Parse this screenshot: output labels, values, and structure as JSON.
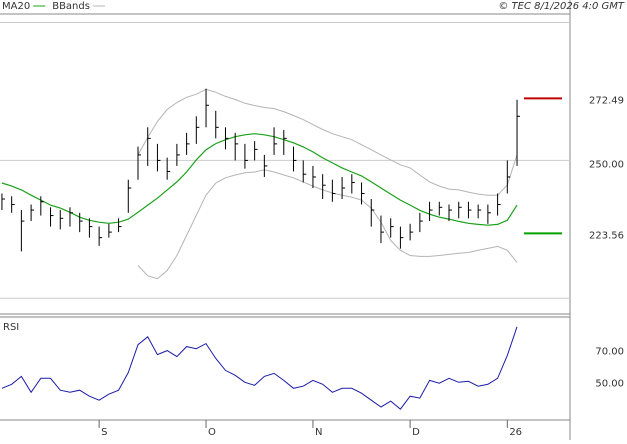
{
  "chart_data": {
    "type": "ohlc",
    "stamp": "© TEC 8/1/2026 4:0 GMT",
    "x": [
      0,
      2,
      4,
      6,
      8,
      10,
      12,
      14,
      16,
      18,
      20,
      22,
      24,
      26,
      28,
      30,
      32,
      34,
      36,
      38,
      40,
      42,
      44,
      46,
      48,
      50,
      52,
      54,
      56,
      58,
      60,
      62,
      64,
      66,
      68,
      70,
      72,
      74,
      76,
      78,
      80,
      82,
      84,
      86,
      88,
      90,
      92,
      94,
      96,
      98,
      100,
      102,
      104,
      106
    ],
    "xlim": [
      -0.4,
      116.9
    ],
    "xticks": [
      {
        "value": 20,
        "label": "S"
      },
      {
        "value": 42,
        "label": "O"
      },
      {
        "value": 64,
        "label": "N"
      },
      {
        "value": 84,
        "label": "D"
      },
      {
        "value": 104,
        "label": "26"
      }
    ],
    "ylim": [
      194.3,
      303.1
    ],
    "yticks": [
      {
        "value": 250,
        "label": "250.00"
      }
    ],
    "ygrid": [
      200,
      250,
      300
    ],
    "bars": {
      "color": "#000000",
      "high": [
        238,
        237,
        232,
        234,
        237,
        233,
        232,
        233,
        231,
        229,
        226,
        227,
        229,
        243,
        255,
        262,
        256,
        251,
        256,
        260,
        266,
        276,
        268,
        262,
        260,
        256,
        257,
        252,
        262,
        261,
        255,
        250,
        248,
        245,
        243,
        244,
        245,
        242,
        236,
        230,
        229,
        226,
        227,
        231,
        235,
        235,
        234,
        235,
        235,
        234,
        234,
        238,
        250,
        272
      ],
      "low": [
        232,
        231,
        217,
        228,
        230,
        226,
        225,
        226,
        224,
        222,
        219,
        222,
        224,
        231,
        243,
        248,
        246,
        243,
        248,
        252,
        256,
        262,
        258,
        254,
        250,
        247,
        250,
        244,
        252,
        252,
        246,
        242,
        240,
        236,
        235,
        236,
        238,
        234,
        226,
        220,
        222,
        218,
        221,
        224,
        228,
        230,
        228,
        229,
        229,
        229,
        227,
        230,
        238,
        248
      ],
      "close": [
        236,
        234,
        228,
        232,
        235,
        230,
        229,
        231,
        228,
        226,
        222,
        224,
        226,
        240,
        252,
        258,
        250,
        246,
        252,
        256,
        262,
        270,
        262,
        258,
        256,
        250,
        254,
        248,
        256,
        258,
        250,
        245,
        244,
        241,
        238,
        240,
        242,
        238,
        232,
        224,
        226,
        222,
        224,
        228,
        232,
        233,
        232,
        233,
        232,
        232,
        231,
        234,
        244,
        266
      ]
    },
    "series": [
      {
        "name": "MA20",
        "color": "#1aa01a",
        "values": [
          241.8,
          240.7,
          239.3,
          237.4,
          235.6,
          233.8,
          232.7,
          231.2,
          229.4,
          228.3,
          227.6,
          227.2,
          227.6,
          228.7,
          231.2,
          233.8,
          236.3,
          239.3,
          242.2,
          245.8,
          250.2,
          253.9,
          256.1,
          257.5,
          258.6,
          259.3,
          259.7,
          259.3,
          258.6,
          257.5,
          256.4,
          254.9,
          253.1,
          250.9,
          249.1,
          247.3,
          245.8,
          244.4,
          242.2,
          240.0,
          237.8,
          235.6,
          233.8,
          231.9,
          230.5,
          229.4,
          228.7,
          227.9,
          227.2,
          226.8,
          226.5,
          226.8,
          228.3,
          233.8
        ]
      },
      {
        "name": "BBands",
        "color": "#b4b4b4",
        "upper": [
          null,
          null,
          null,
          null,
          null,
          null,
          null,
          null,
          null,
          null,
          null,
          null,
          null,
          null,
          252.0,
          258.3,
          264.1,
          268.5,
          271.0,
          272.9,
          274.0,
          275.8,
          274.7,
          273.2,
          272.1,
          270.7,
          269.9,
          269.2,
          268.8,
          267.7,
          266.3,
          264.8,
          263.0,
          261.2,
          259.7,
          258.6,
          257.5,
          255.7,
          253.9,
          252.0,
          250.2,
          248.4,
          247.3,
          244.7,
          242.2,
          240.7,
          239.6,
          239.3,
          238.5,
          237.8,
          237.4,
          237.4,
          241.1,
          252.0
        ],
        "lower": [
          null,
          null,
          null,
          null,
          null,
          null,
          null,
          null,
          null,
          null,
          null,
          null,
          null,
          null,
          211.9,
          208.2,
          207.1,
          210.1,
          215.5,
          222.8,
          230.1,
          237.4,
          241.8,
          243.7,
          244.7,
          245.5,
          245.8,
          246.6,
          245.8,
          244.7,
          243.7,
          242.2,
          240.7,
          239.3,
          238.2,
          237.4,
          236.7,
          235.6,
          232.7,
          227.6,
          221.0,
          217.4,
          215.5,
          215.2,
          215.2,
          215.5,
          215.9,
          216.3,
          216.6,
          217.4,
          218.1,
          218.8,
          217.4,
          213.0
        ]
      }
    ],
    "markers": [
      {
        "value": 272.49,
        "color": "#c00000"
      },
      {
        "value": 223.56,
        "color": "#00a000"
      }
    ],
    "rsi": {
      "label": "RSI",
      "color": "#1c1ca8",
      "ylim": [
        25.6,
        90.6
      ],
      "yticks": [
        {
          "value": 70,
          "label": "70.00"
        },
        {
          "value": 50,
          "label": "50.00"
        }
      ],
      "values": [
        45.6,
        48.1,
        53.1,
        43.1,
        51.9,
        51.9,
        44.4,
        43.1,
        44.4,
        40.6,
        38.1,
        41.9,
        44.4,
        55.6,
        73.1,
        78.1,
        66.9,
        69.4,
        65.6,
        71.9,
        70.6,
        73.8,
        64.4,
        56.9,
        53.8,
        49.4,
        47.5,
        53.1,
        55.0,
        50.6,
        45.6,
        46.9,
        50.6,
        48.1,
        43.1,
        45.6,
        45.6,
        42.5,
        38.1,
        33.8,
        37.5,
        32.5,
        40.6,
        39.4,
        50.6,
        48.8,
        51.9,
        49.4,
        50.0,
        46.9,
        48.1,
        51.9,
        66.3,
        84.4
      ]
    }
  }
}
